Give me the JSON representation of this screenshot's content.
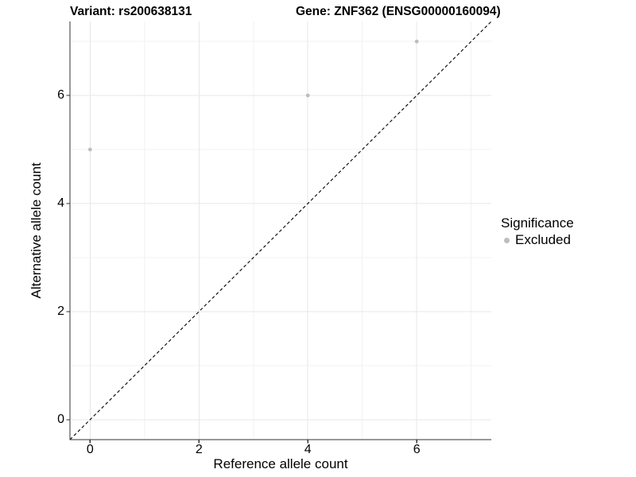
{
  "chart_data": {
    "type": "scatter",
    "titles": {
      "left": "Variant: rs200638131",
      "right": "Gene: ZNF362 (ENSG00000160094)"
    },
    "xlabel": "Reference allele count",
    "ylabel": "Alternative allele count",
    "xlim": [
      -0.37,
      7.37
    ],
    "ylim": [
      -0.37,
      7.37
    ],
    "x_ticks": [
      0,
      2,
      4,
      6
    ],
    "y_ticks": [
      0,
      2,
      4,
      6
    ],
    "x_minor_ticks": [
      1,
      3,
      5,
      7
    ],
    "y_minor_ticks": [
      1,
      3,
      5,
      7
    ],
    "grid": true,
    "series": [
      {
        "name": "Excluded",
        "points": [
          {
            "x": 0,
            "y": 5
          },
          {
            "x": 4,
            "y": 6
          },
          {
            "x": 6,
            "y": 7
          }
        ],
        "color": "#bdbdbd"
      }
    ],
    "identity_line": {
      "slope": 1,
      "intercept": 0,
      "style": "dashed",
      "color": "#000000"
    },
    "legend": {
      "title": "Significance",
      "position": "right",
      "items": [
        {
          "label": "Excluded",
          "color": "#bdbdbd"
        }
      ]
    },
    "colors": {
      "grid_major": "#e7e7e7",
      "grid_minor": "#f2f2f2",
      "axis_line": "#333333",
      "tick_mark": "#333333",
      "text": "#000000"
    }
  }
}
